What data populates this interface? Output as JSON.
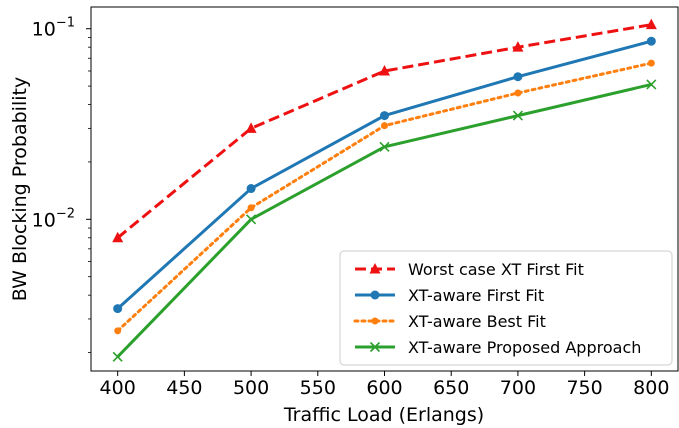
{
  "chart_data": {
    "type": "line",
    "title": "",
    "xlabel": "Traffic Load (Erlangs)",
    "ylabel": "BW Blocking Probability",
    "yscale": "log",
    "xlim": [
      380,
      820
    ],
    "ylim": [
      0.0016,
      0.13
    ],
    "x_ticks": [
      "400",
      "450",
      "500",
      "550",
      "600",
      "650",
      "700",
      "750",
      "800"
    ],
    "y_ticks": [
      {
        "base": "10",
        "exp": "−2",
        "value": 0.01
      },
      {
        "base": "10",
        "exp": "−1",
        "value": 0.1
      }
    ],
    "grid": false,
    "legend_position": "lower-right",
    "x": [
      400,
      500,
      600,
      700,
      800
    ],
    "series": [
      {
        "name": "Worst case XT First Fit",
        "color": "#ee1111",
        "dash": "dashed",
        "marker": "triangle",
        "values": [
          0.008,
          0.03,
          0.06,
          0.08,
          0.105
        ]
      },
      {
        "name": "XT-aware First Fit",
        "color": "#1f77b4",
        "dash": "solid",
        "marker": "circle",
        "values": [
          0.0034,
          0.0145,
          0.035,
          0.056,
          0.086
        ]
      },
      {
        "name": "XT-aware Best Fit",
        "color": "#ff7f0e",
        "dash": "dotted",
        "marker": "dot",
        "values": [
          0.0026,
          0.0115,
          0.031,
          0.046,
          0.066
        ]
      },
      {
        "name": "XT-aware Proposed Approach",
        "color": "#2ca02c",
        "dash": "solid",
        "marker": "x",
        "values": [
          0.0019,
          0.01,
          0.024,
          0.035,
          0.051
        ]
      }
    ]
  }
}
